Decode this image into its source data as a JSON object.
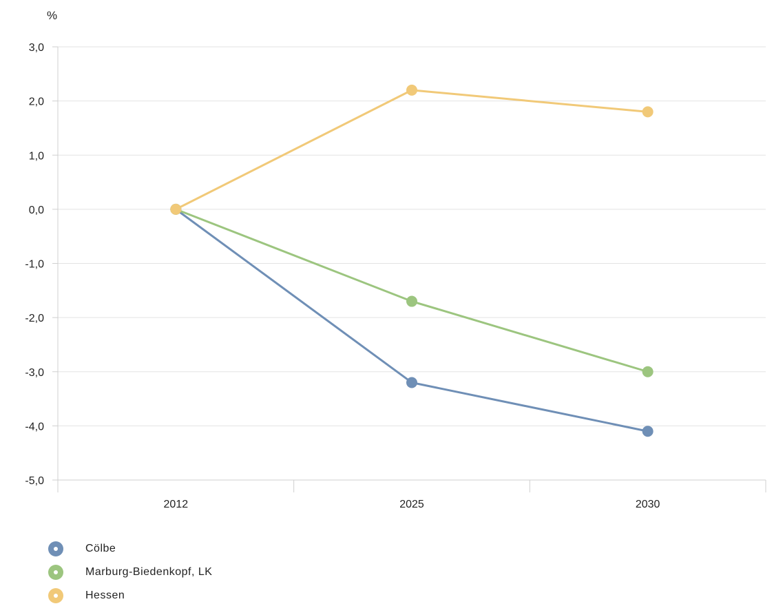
{
  "chart_data": {
    "type": "line",
    "unit": "%",
    "categories": [
      "2012",
      "2025",
      "2030"
    ],
    "series": [
      {
        "name": "Cölbe",
        "color": "#6f8fb6",
        "values": [
          0.0,
          -3.2,
          -4.1
        ]
      },
      {
        "name": "Marburg-Biedenkopf, LK",
        "color": "#9cc57f",
        "values": [
          0.0,
          -1.7,
          -3.0
        ]
      },
      {
        "name": "Hessen",
        "color": "#f1c978",
        "values": [
          0.0,
          2.2,
          1.8
        ]
      }
    ],
    "yticks": [
      "3,0",
      "2,0",
      "1,0",
      "0,0",
      "-1,0",
      "-2,0",
      "-3,0",
      "-4,0",
      "-5,0"
    ],
    "ylim": [
      -5,
      3
    ],
    "grid": true,
    "legend_position": "bottom-left"
  }
}
